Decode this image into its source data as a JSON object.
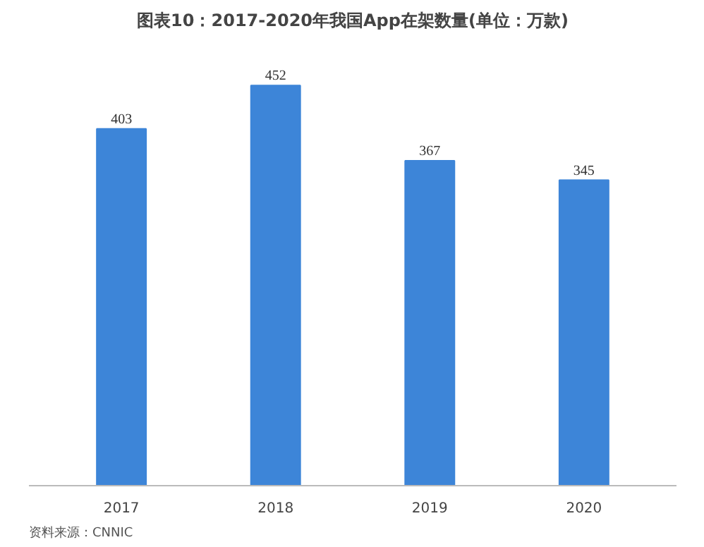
{
  "chart_data": {
    "type": "bar",
    "title": "图表10：2017-2020年我国App在架数量(单位：万款)",
    "categories": [
      "2017",
      "2018",
      "2019",
      "2020"
    ],
    "values": [
      403,
      452,
      367,
      345
    ],
    "color": "#3d85d8",
    "data_labels": true,
    "grid": false,
    "tick_labels": "x",
    "annotations": [
      "资料来源：CNNIC"
    ]
  }
}
